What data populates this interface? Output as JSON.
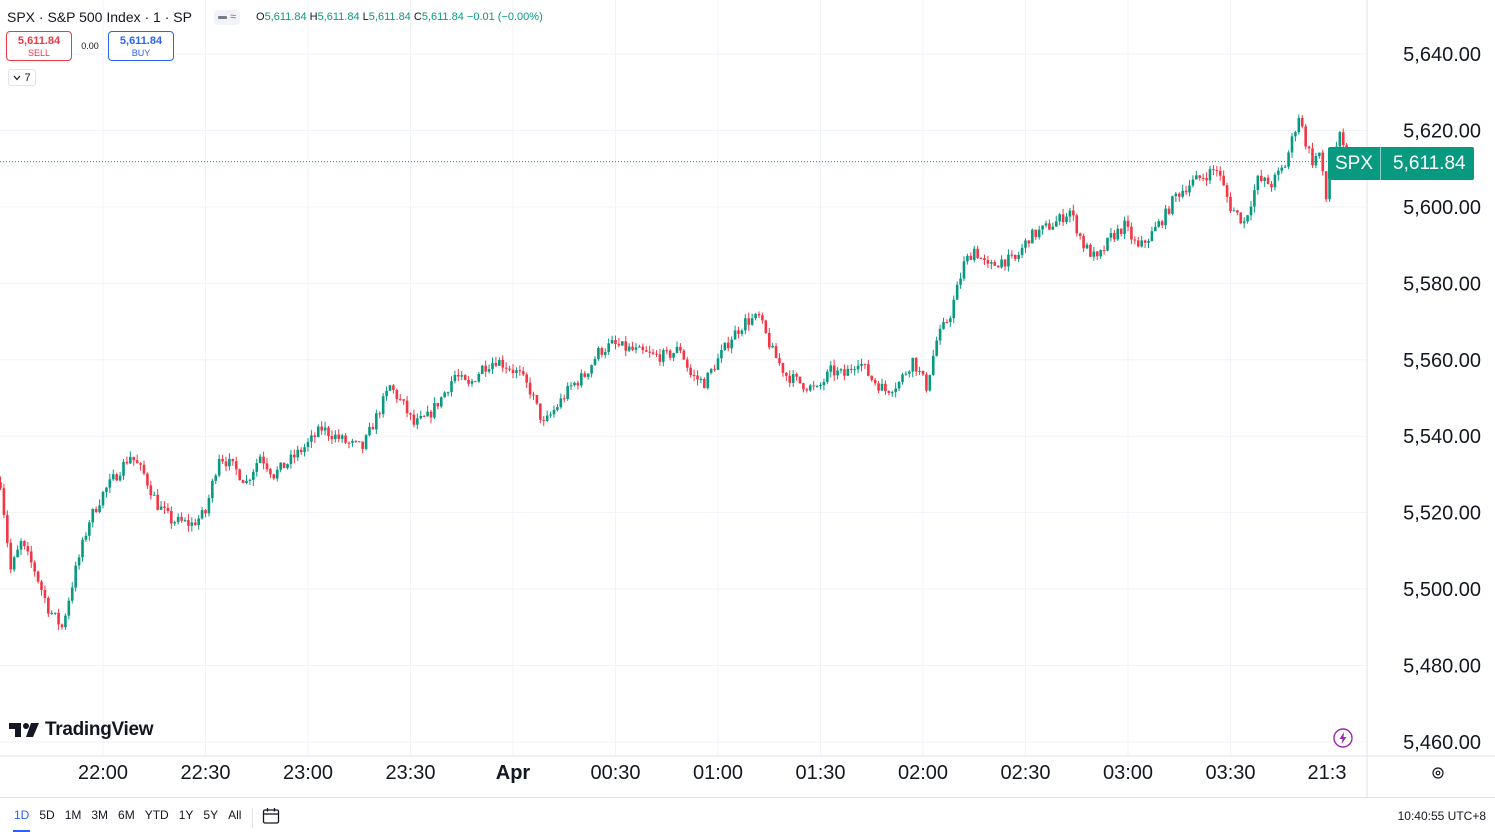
{
  "header": {
    "symbol_title": "SPX · S&P 500 Index · 1 · SP",
    "ohlc": {
      "o_label": "O",
      "o_value": "5,611.84",
      "h_label": "H",
      "h_value": "5,611.84",
      "l_label": "L",
      "l_value": "5,611.84",
      "c_label": "C",
      "c_value": "5,611.84",
      "change": "−0.01 (−0.00%)"
    }
  },
  "trade": {
    "sell_price": "5,611.84",
    "sell_label": "SELL",
    "spread": "0.00",
    "buy_price": "5,611.84",
    "buy_label": "BUY"
  },
  "collapse_count": "7",
  "logo_text": "TradingView",
  "last_price_tag": {
    "symbol": "SPX",
    "price": "5,611.84"
  },
  "bottom_bar": {
    "ranges": [
      "1D",
      "5D",
      "1M",
      "3M",
      "6M",
      "YTD",
      "1Y",
      "5Y",
      "All"
    ],
    "active_range": "1D",
    "clock": "10:40:55 UTC+8"
  },
  "colors": {
    "up": "#089981",
    "down": "#f23645",
    "accent": "#2962ff",
    "grid": "#f0f3fa"
  },
  "chart_data": {
    "type": "candlestick",
    "title": "",
    "y_ticks": [
      "5,640.00",
      "5,620.00",
      "5,600.00",
      "5,580.00",
      "5,560.00",
      "5,540.00",
      "5,520.00",
      "5,500.00",
      "5,480.00",
      "5,460.00"
    ],
    "y_range": [
      5457,
      5650
    ],
    "x_ticks": [
      "22:00",
      "22:30",
      "23:00",
      "23:30",
      "Apr",
      "00:30",
      "01:00",
      "01:30",
      "02:00",
      "02:30",
      "03:00",
      "03:30",
      "21:3"
    ],
    "last_price": 5611.84,
    "close_path": [
      [
        "21:30",
        5528
      ],
      [
        "21:33",
        5505
      ],
      [
        "21:36",
        5512
      ],
      [
        "21:40",
        5505
      ],
      [
        "21:44",
        5495
      ],
      [
        "21:48",
        5490
      ],
      [
        "21:52",
        5505
      ],
      [
        "21:56",
        5518
      ],
      [
        "22:00",
        5525
      ],
      [
        "22:04",
        5530
      ],
      [
        "22:08",
        5535
      ],
      [
        "22:12",
        5530
      ],
      [
        "22:16",
        5522
      ],
      [
        "22:20",
        5518
      ],
      [
        "22:26",
        5517
      ],
      [
        "22:30",
        5520
      ],
      [
        "22:34",
        5535
      ],
      [
        "22:38",
        5532
      ],
      [
        "22:42",
        5528
      ],
      [
        "22:46",
        5535
      ],
      [
        "22:50",
        5530
      ],
      [
        "22:54",
        5533
      ],
      [
        "23:00",
        5538
      ],
      [
        "23:04",
        5542
      ],
      [
        "23:08",
        5540
      ],
      [
        "23:12",
        5538
      ],
      [
        "23:16",
        5537
      ],
      [
        "23:20",
        5545
      ],
      [
        "23:24",
        5553
      ],
      [
        "23:28",
        5548
      ],
      [
        "23:31",
        5543
      ],
      [
        "23:35",
        5545
      ],
      [
        "23:39",
        5550
      ],
      [
        "23:43",
        5556
      ],
      [
        "23:47",
        5553
      ],
      [
        "23:51",
        5558
      ],
      [
        "23:55",
        5560
      ],
      [
        "23:59",
        5558
      ],
      [
        "00:02",
        5556
      ],
      [
        "00:05",
        5552
      ],
      [
        "00:09",
        5543
      ],
      [
        "00:13",
        5548
      ],
      [
        "00:17",
        5553
      ],
      [
        "00:21",
        5556
      ],
      [
        "00:25",
        5562
      ],
      [
        "00:29",
        5564
      ],
      [
        "00:33",
        5563
      ],
      [
        "00:37",
        5562
      ],
      [
        "00:41",
        5561
      ],
      [
        "00:45",
        5561
      ],
      [
        "00:49",
        5563
      ],
      [
        "00:52",
        5556
      ],
      [
        "00:56",
        5554
      ],
      [
        "01:00",
        5560
      ],
      [
        "01:04",
        5566
      ],
      [
        "01:08",
        5570
      ],
      [
        "01:12",
        5571
      ],
      [
        "01:16",
        5562
      ],
      [
        "01:20",
        5556
      ],
      [
        "01:24",
        5554
      ],
      [
        "01:29",
        5552
      ],
      [
        "01:33",
        5557
      ],
      [
        "01:37",
        5556
      ],
      [
        "01:41",
        5560
      ],
      [
        "01:45",
        5555
      ],
      [
        "01:49",
        5552
      ],
      [
        "01:53",
        5554
      ],
      [
        "01:57",
        5560
      ],
      [
        "02:01",
        5553
      ],
      [
        "02:04",
        5565
      ],
      [
        "02:08",
        5572
      ],
      [
        "02:12",
        5585
      ],
      [
        "02:15",
        5589
      ],
      [
        "02:19",
        5584
      ],
      [
        "02:23",
        5586
      ],
      [
        "02:27",
        5586
      ],
      [
        "02:31",
        5592
      ],
      [
        "02:35",
        5594
      ],
      [
        "02:39",
        5596
      ],
      [
        "02:43",
        5599
      ],
      [
        "02:47",
        5590
      ],
      [
        "02:51",
        5586
      ],
      [
        "02:55",
        5592
      ],
      [
        "02:59",
        5595
      ],
      [
        "03:03",
        5589
      ],
      [
        "03:07",
        5593
      ],
      [
        "03:11",
        5598
      ],
      [
        "03:14",
        5603
      ],
      [
        "03:18",
        5606
      ],
      [
        "03:22",
        5608
      ],
      [
        "03:26",
        5610
      ],
      [
        "03:30",
        5600
      ],
      [
        "03:34",
        5596
      ],
      [
        "03:38",
        5607
      ],
      [
        "03:42",
        5606
      ],
      [
        "03:46",
        5611
      ],
      [
        "03:50",
        5624
      ],
      [
        "03:52",
        5617
      ],
      [
        "03:54",
        5612
      ],
      [
        "03:56",
        5614
      ],
      [
        "03:58",
        5602
      ],
      [
        "04:00",
        5614
      ],
      [
        "04:02",
        5618
      ],
      [
        "04:04",
        5611.84
      ]
    ],
    "grid": true
  }
}
